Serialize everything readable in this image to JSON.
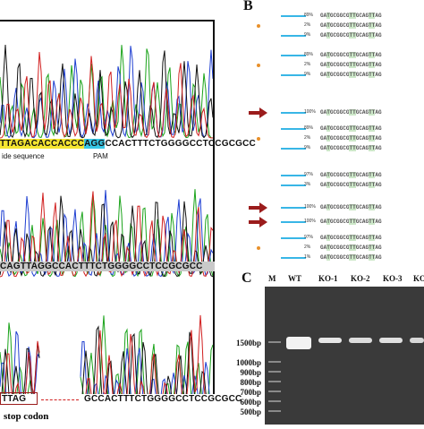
{
  "panel_b": {
    "letter": "B",
    "rows": [
      {
        "pct": "89%",
        "seq": "GATGCGGCGTTGCAGTTAG",
        "line": 28,
        "marker": "none"
      },
      {
        "pct": "2%",
        "seq": "GATGCGGCGTTGCAGTTAG",
        "line": 0,
        "marker": "dot"
      },
      {
        "pct": "9%",
        "seq": "GATGCGGCGTTGCAGTTAG",
        "line": 28,
        "marker": "none"
      },
      {
        "pct": "89%",
        "seq": "GATGCGGCGTTGCAGTTAG",
        "line": 28,
        "marker": "none"
      },
      {
        "pct": "2%",
        "seq": "GATGCGGCGTTGCAGTTAG",
        "line": 0,
        "marker": "dot"
      },
      {
        "pct": "9%",
        "seq": "GATGCGGCGTTGCAGTTAG",
        "line": 28,
        "marker": "none"
      },
      {
        "pct": "100%",
        "seq": "GATGCGGCGTTGCAGTTAG",
        "line": 28,
        "marker": "arrow"
      },
      {
        "pct": "89%",
        "seq": "GATGCGGCGTTGCAGTTAG",
        "line": 28,
        "marker": "none"
      },
      {
        "pct": "2%",
        "seq": "GATGCGGCGTTGCAGTTAG",
        "line": 0,
        "marker": "dot"
      },
      {
        "pct": "9%",
        "seq": "GATGCGGCGTTGCAGTTAG",
        "line": 28,
        "marker": "none"
      },
      {
        "pct": "97%",
        "seq": "GATGCGGCGTTGCAGTTAG",
        "line": 28,
        "marker": "none"
      },
      {
        "pct": "3%",
        "seq": "GATGCGGCGTTGCAGTTAG",
        "line": 28,
        "marker": "none"
      },
      {
        "pct": "100%",
        "seq": "GATGCGGCGTTGCAGTTAG",
        "line": 28,
        "marker": "arrow"
      },
      {
        "pct": "100%",
        "seq": "GATGCGGCGTTGCAGTTAG",
        "line": 28,
        "marker": "arrow"
      },
      {
        "pct": "97%",
        "seq": "GATGCGGCGTTGCAGTTAG",
        "line": 28,
        "marker": "none"
      },
      {
        "pct": "2%",
        "seq": "GATGCGGCGTTGCAGTTAG",
        "line": 0,
        "marker": "dot"
      },
      {
        "pct": "1%",
        "seq": "GATGCGGCGTTGCAGTTAG",
        "line": 28,
        "marker": "none"
      }
    ]
  },
  "panel_a": {
    "seq1_highlight_guide": "TTAGACACCACCC",
    "seq1_highlight_pam": "AGG",
    "seq1_rest": "CCACTTTCTGGGGCCTCCGCGCC",
    "guide_label": "ide sequence",
    "pam_label": "PAM",
    "seq2": "CAGTTAGGCCACTTTCTGGGGCCTCCGCGCC",
    "seq3_left": "TTAG",
    "seq3_right": "GCCACTTTCTGGGGCCTCCGCGCC",
    "stop_label": "stop codon"
  },
  "panel_c": {
    "letter": "C",
    "lanes": [
      "M",
      "WT",
      "KO-1",
      "KO-2",
      "KO-3",
      "KO"
    ],
    "bp_labels": [
      "1500bp",
      "1000bp",
      "900bp",
      "800bp",
      "700bp",
      "600bp",
      "500bp"
    ]
  },
  "colors": {
    "A": "#1aa31a",
    "C": "#1f3fd1",
    "G": "#111111",
    "T": "#d11f1f",
    "guide_bg": "#f5e631",
    "pam_bg": "#38c7e6",
    "seq2_bg": "#c9c9c9",
    "arrow": "#9b1c1c",
    "dot": "#e8902a"
  }
}
